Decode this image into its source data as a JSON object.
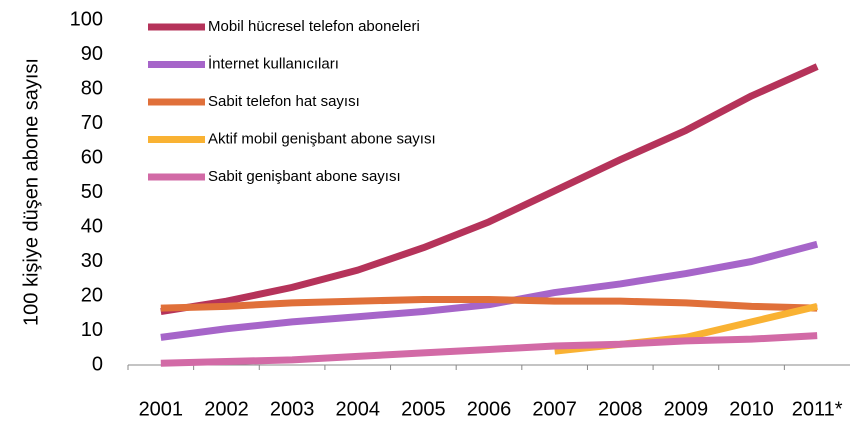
{
  "chart_data": {
    "type": "line",
    "ylabel": "100 kişiye düşen abone sayısı",
    "categories": [
      "2001",
      "2002",
      "2003",
      "2004",
      "2005",
      "2006",
      "2007",
      "2008",
      "2009",
      "2010",
      "2011*"
    ],
    "series": [
      {
        "name": "Mobil hücresel telefon aboneleri",
        "color": "#b5335a",
        "values": [
          15.5,
          18.5,
          22.5,
          27.5,
          34,
          41.5,
          50.5,
          59.5,
          68,
          78,
          86.5
        ]
      },
      {
        "name": "İnternet kullanıcıları",
        "color": "#a665c9",
        "values": [
          8,
          10.5,
          12.5,
          14,
          15.5,
          17.5,
          21,
          23.5,
          26.5,
          30,
          35
        ]
      },
      {
        "name": "Sabit telefon hat sayısı",
        "color": "#e0703a",
        "values": [
          16.5,
          17,
          18,
          18.5,
          19,
          19,
          18.5,
          18.5,
          18,
          17,
          16.5
        ]
      },
      {
        "name": "Aktif mobil genişbant abone sayısı",
        "color": "#f9b233",
        "values": [
          null,
          null,
          null,
          null,
          null,
          null,
          4,
          6,
          8,
          12.5,
          17
        ]
      },
      {
        "name": "Sabit genişbant abone sayısı",
        "color": "#d26aa6",
        "values": [
          0.5,
          1,
          1.5,
          2.5,
          3.5,
          4.5,
          5.5,
          6,
          7,
          7.5,
          8.5
        ]
      }
    ],
    "ylim": [
      0,
      100
    ],
    "yticks": [
      0,
      10,
      20,
      30,
      40,
      50,
      60,
      70,
      80,
      90,
      100
    ]
  }
}
